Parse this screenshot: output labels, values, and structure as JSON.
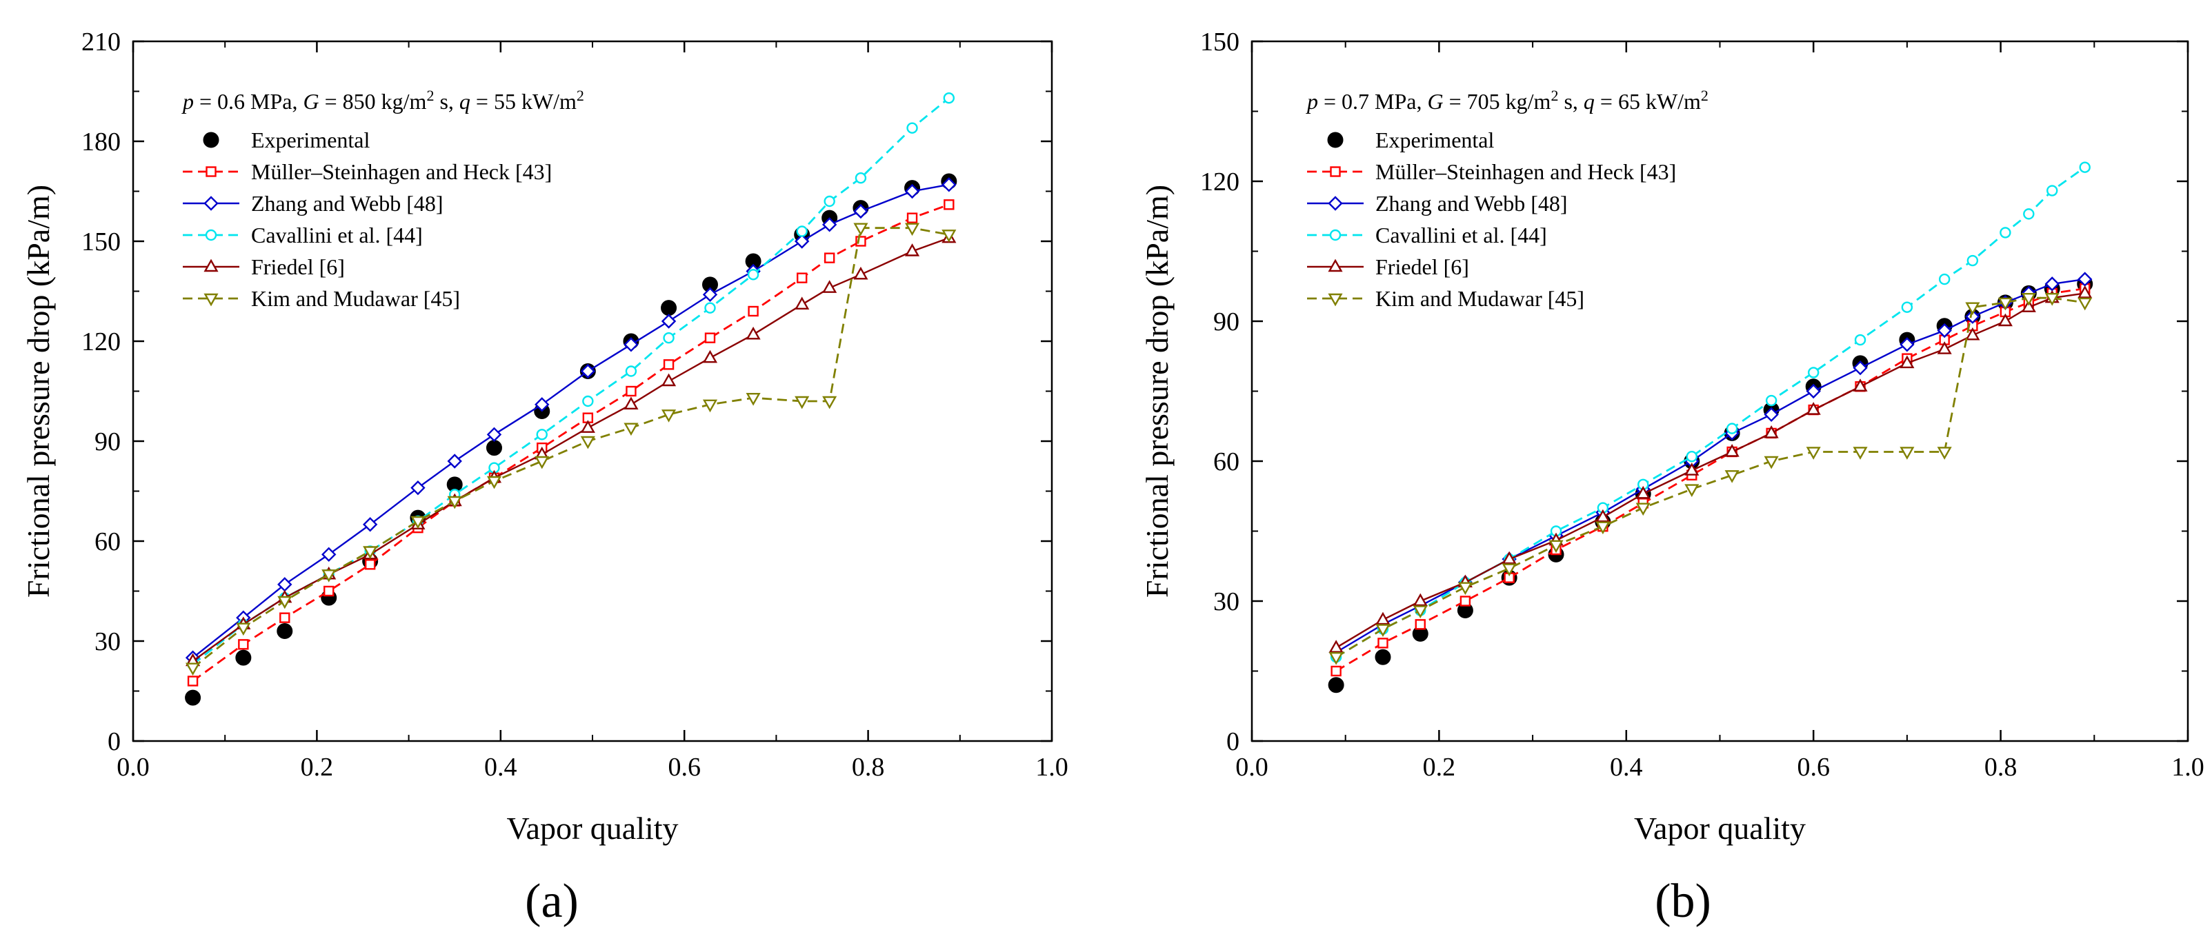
{
  "colors": {
    "experimental": "#000000",
    "muller": "#ff0000",
    "zhang": "#0000cc",
    "cavallini": "#00e5ee",
    "friedel": "#8b0000",
    "kim": "#808000"
  },
  "chart_data": [
    {
      "type": "scatter",
      "panel_label": "(a)",
      "condition": {
        "p_sym": "p",
        "p_val": " = 0.6 MPa, ",
        "g_sym": "G",
        "g_val": " = 850 kg/m",
        "g_sup": "2",
        "g_unit": " s, ",
        "q_sym": "q",
        "q_val": " = 55 kW/m",
        "q_sup": "2"
      },
      "xlabel": "Vapor quality",
      "ylabel": "Frictional pressure drop (kPa/m)",
      "xlim": [
        0,
        1.0
      ],
      "ylim": [
        0,
        210
      ],
      "xticks": [
        "0.0",
        "0.2",
        "0.4",
        "0.6",
        "0.8",
        "1.0"
      ],
      "yticks": [
        "0",
        "30",
        "60",
        "90",
        "120",
        "150",
        "180",
        "210"
      ],
      "series": [
        {
          "name": "Experimental",
          "marker": "filled-circle",
          "x": [
            0.065,
            0.12,
            0.165,
            0.213,
            0.258,
            0.31,
            0.35,
            0.393,
            0.445,
            0.495,
            0.542,
            0.583,
            0.628,
            0.675,
            0.728,
            0.758,
            0.792,
            0.848,
            0.888
          ],
          "y": [
            13,
            25,
            33,
            43,
            54,
            67,
            77,
            88,
            99,
            111,
            120,
            130,
            137,
            144,
            152,
            157,
            160,
            166,
            168
          ]
        },
        {
          "name": "Müller–Steinhagen and Heck [43]",
          "marker": "square",
          "line": "dash",
          "x": [
            0.065,
            0.12,
            0.165,
            0.213,
            0.258,
            0.31,
            0.35,
            0.393,
            0.445,
            0.495,
            0.542,
            0.583,
            0.628,
            0.675,
            0.728,
            0.758,
            0.792,
            0.848,
            0.888
          ],
          "y": [
            18,
            29,
            37,
            45,
            53,
            64,
            72,
            79,
            88,
            97,
            105,
            113,
            121,
            129,
            139,
            145,
            150,
            157,
            161
          ]
        },
        {
          "name": "Zhang and Webb [48]",
          "marker": "diamond",
          "line": "solid",
          "x": [
            0.065,
            0.12,
            0.165,
            0.213,
            0.258,
            0.31,
            0.35,
            0.393,
            0.445,
            0.495,
            0.542,
            0.583,
            0.628,
            0.675,
            0.728,
            0.758,
            0.792,
            0.848,
            0.888
          ],
          "y": [
            25,
            37,
            47,
            56,
            65,
            76,
            84,
            92,
            101,
            111,
            119,
            126,
            134,
            141,
            150,
            155,
            159,
            165,
            167
          ]
        },
        {
          "name": "Cavallini et al. [44]",
          "marker": "circle",
          "line": "dash",
          "x": [
            0.065,
            0.12,
            0.165,
            0.213,
            0.258,
            0.31,
            0.35,
            0.393,
            0.445,
            0.495,
            0.542,
            0.583,
            0.628,
            0.675,
            0.728,
            0.758,
            0.792,
            0.848,
            0.888
          ],
          "y": [
            23,
            35,
            43,
            50,
            57,
            66,
            74,
            82,
            92,
            102,
            111,
            121,
            130,
            140,
            153,
            162,
            169,
            184,
            193
          ]
        },
        {
          "name": "Friedel [6]",
          "marker": "triangle-up",
          "line": "solid",
          "x": [
            0.065,
            0.12,
            0.165,
            0.213,
            0.258,
            0.31,
            0.35,
            0.393,
            0.445,
            0.495,
            0.542,
            0.583,
            0.628,
            0.675,
            0.728,
            0.758,
            0.792,
            0.848,
            0.888
          ],
          "y": [
            24,
            35,
            43,
            50,
            56,
            65,
            72,
            79,
            86,
            94,
            101,
            108,
            115,
            122,
            131,
            136,
            140,
            147,
            151
          ]
        },
        {
          "name": "Kim and Mudawar [45]",
          "marker": "triangle-down",
          "line": "dash",
          "x": [
            0.065,
            0.12,
            0.165,
            0.213,
            0.258,
            0.31,
            0.35,
            0.393,
            0.445,
            0.495,
            0.542,
            0.583,
            0.628,
            0.675,
            0.728,
            0.758,
            0.792,
            0.848,
            0.888
          ],
          "y": [
            22,
            34,
            42,
            50,
            57,
            66,
            72,
            78,
            84,
            90,
            94,
            98,
            101,
            103,
            102,
            102,
            154,
            154,
            152
          ]
        }
      ]
    },
    {
      "type": "scatter",
      "panel_label": "(b)",
      "condition": {
        "p_sym": "p",
        "p_val": " = 0.7 MPa, ",
        "g_sym": "G",
        "g_val": " = 705 kg/m",
        "g_sup": "2",
        "g_unit": " s, ",
        "q_sym": "q",
        "q_val": " = 65 kW/m",
        "q_sup": "2"
      },
      "xlabel": "Vapor quality",
      "ylabel": "Frictional pressure drop (kPa/m)",
      "xlim": [
        0,
        1.0
      ],
      "ylim": [
        0,
        150
      ],
      "xticks": [
        "0.0",
        "0.2",
        "0.4",
        "0.6",
        "0.8",
        "1.0"
      ],
      "yticks": [
        "0",
        "30",
        "60",
        "90",
        "120",
        "150"
      ],
      "series": [
        {
          "name": "Experimental",
          "marker": "filled-circle",
          "x": [
            0.09,
            0.14,
            0.18,
            0.228,
            0.275,
            0.325,
            0.375,
            0.418,
            0.47,
            0.513,
            0.555,
            0.6,
            0.65,
            0.7,
            0.74,
            0.77,
            0.805,
            0.83,
            0.855,
            0.89
          ],
          "y": [
            12,
            18,
            23,
            28,
            35,
            40,
            47,
            53,
            60,
            66,
            71,
            76,
            81,
            86,
            89,
            91,
            94,
            96,
            97,
            98
          ]
        },
        {
          "name": "Müller–Steinhagen and Heck [43]",
          "marker": "square",
          "line": "dash",
          "x": [
            0.09,
            0.14,
            0.18,
            0.228,
            0.275,
            0.325,
            0.375,
            0.418,
            0.47,
            0.513,
            0.555,
            0.6,
            0.65,
            0.7,
            0.74,
            0.77,
            0.805,
            0.83,
            0.855,
            0.89
          ],
          "y": [
            15,
            21,
            25,
            30,
            35,
            41,
            46,
            51,
            57,
            62,
            66,
            71,
            76,
            82,
            86,
            89,
            92,
            94,
            96,
            97
          ]
        },
        {
          "name": "Zhang and Webb [48]",
          "marker": "diamond",
          "line": "solid",
          "x": [
            0.09,
            0.14,
            0.18,
            0.228,
            0.275,
            0.325,
            0.375,
            0.418,
            0.47,
            0.513,
            0.555,
            0.6,
            0.65,
            0.7,
            0.74,
            0.77,
            0.805,
            0.83,
            0.855,
            0.89
          ],
          "y": [
            19,
            25,
            29,
            34,
            39,
            44,
            49,
            54,
            60,
            66,
            70,
            75,
            80,
            85,
            88,
            91,
            94,
            96,
            98,
            99
          ]
        },
        {
          "name": "Cavallini et al. [44]",
          "marker": "circle",
          "line": "dash",
          "x": [
            0.09,
            0.14,
            0.18,
            0.228,
            0.275,
            0.325,
            0.375,
            0.418,
            0.47,
            0.513,
            0.555,
            0.6,
            0.65,
            0.7,
            0.74,
            0.77,
            0.805,
            0.83,
            0.855,
            0.89
          ],
          "y": [
            18,
            24,
            28,
            34,
            39,
            45,
            50,
            55,
            61,
            67,
            73,
            79,
            86,
            93,
            99,
            103,
            109,
            113,
            118,
            123
          ]
        },
        {
          "name": "Friedel [6]",
          "marker": "triangle-up",
          "line": "solid",
          "x": [
            0.09,
            0.14,
            0.18,
            0.228,
            0.275,
            0.325,
            0.375,
            0.418,
            0.47,
            0.513,
            0.555,
            0.6,
            0.65,
            0.7,
            0.74,
            0.77,
            0.805,
            0.83,
            0.855,
            0.89
          ],
          "y": [
            20,
            26,
            30,
            34,
            39,
            43,
            48,
            53,
            58,
            62,
            66,
            71,
            76,
            81,
            84,
            87,
            90,
            93,
            95,
            96
          ]
        },
        {
          "name": "Kim and Mudawar [45]",
          "marker": "triangle-down",
          "line": "dash",
          "x": [
            0.09,
            0.14,
            0.18,
            0.228,
            0.275,
            0.325,
            0.375,
            0.418,
            0.47,
            0.513,
            0.555,
            0.6,
            0.65,
            0.7,
            0.74,
            0.77,
            0.805,
            0.83,
            0.855,
            0.89
          ],
          "y": [
            18,
            24,
            28,
            33,
            37,
            42,
            46,
            50,
            54,
            57,
            60,
            62,
            62,
            62,
            62,
            93,
            94,
            95,
            95,
            94
          ]
        }
      ]
    }
  ]
}
